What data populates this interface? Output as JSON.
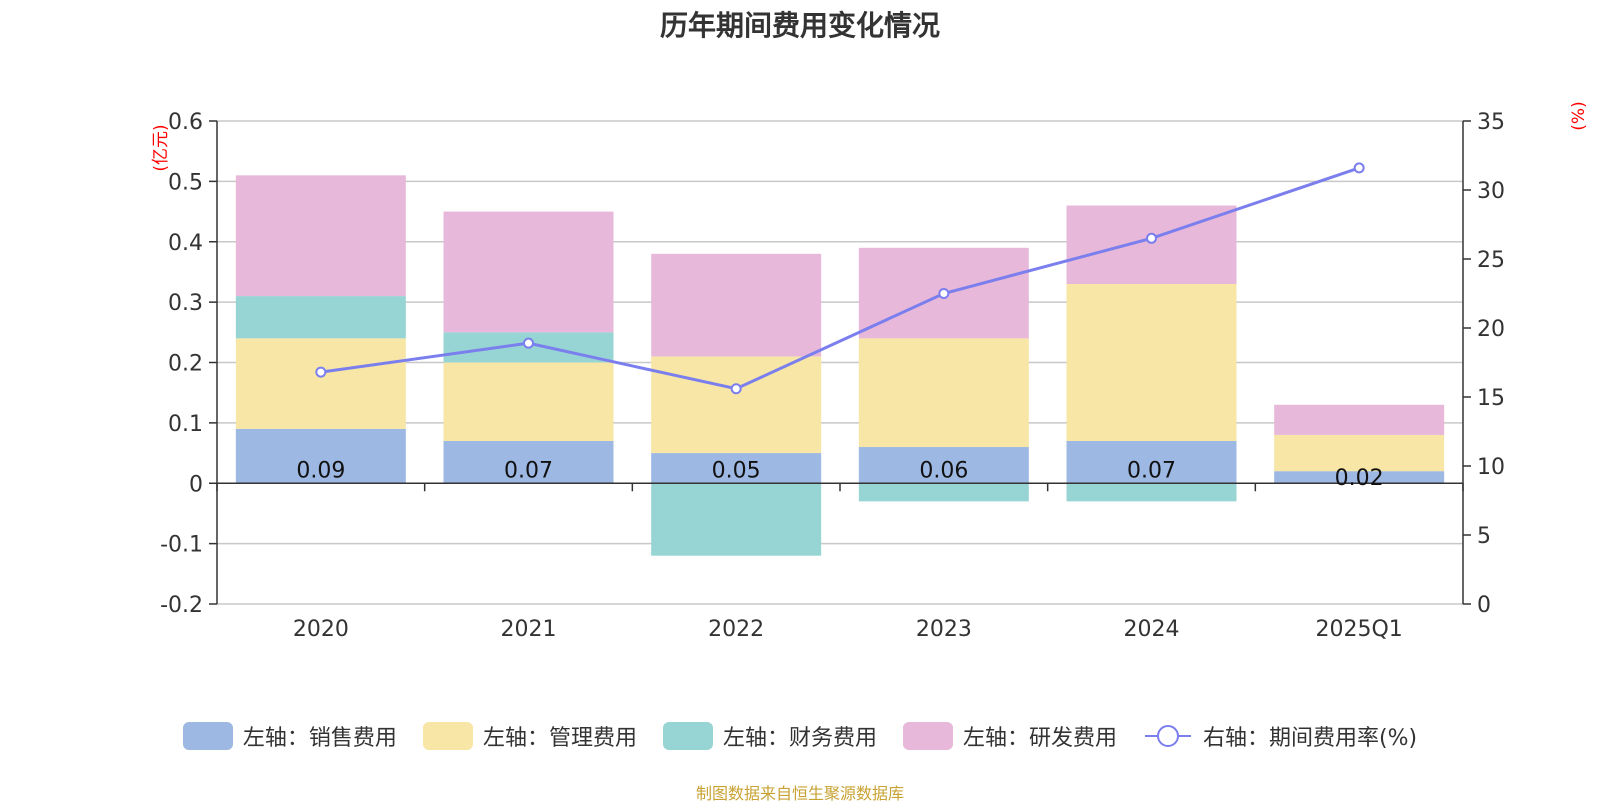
{
  "title": "历年期间费用变化情况",
  "source": "制图数据来自恒生聚源数据库",
  "colors": {
    "sales": "#9db8e2",
    "admin": "#f7e6a6",
    "finance": "#97d4d4",
    "rnd": "#e7b8d9",
    "rate": "#7b7fee",
    "axis_unit": "#ff0000",
    "grid": "#c8c8c8",
    "text": "#333333"
  },
  "chart_data": {
    "type": "bar",
    "stacked": true,
    "title": "历年期间费用变化情况",
    "categories": [
      "2020",
      "2021",
      "2022",
      "2023",
      "2024",
      "2025Q1"
    ],
    "left_axis": {
      "unit": "(亿元)",
      "range": [
        -0.2,
        0.6
      ],
      "ticks": [
        -0.2,
        -0.1,
        0,
        0.1,
        0.2,
        0.3,
        0.4,
        0.5,
        0.6
      ],
      "tick_labels": [
        "-0.2",
        "-0.1",
        "0",
        "0.1",
        "0.2",
        "0.3",
        "0.4",
        "0.5",
        "0.6"
      ]
    },
    "right_axis": {
      "unit": "(%)",
      "range": [
        0,
        35
      ],
      "ticks": [
        0,
        5,
        10,
        15,
        20,
        25,
        30,
        35
      ],
      "tick_labels": [
        "0",
        "5",
        "10",
        "15",
        "20",
        "25",
        "30",
        "35"
      ]
    },
    "series": [
      {
        "name": "左轴：销售费用",
        "key": "sales",
        "axis": "left",
        "type": "bar",
        "values": [
          0.09,
          0.07,
          0.05,
          0.06,
          0.07,
          0.02
        ],
        "labels": [
          "0.09",
          "0.07",
          "0.05",
          "0.06",
          "0.07",
          "0.02"
        ]
      },
      {
        "name": "左轴：管理费用",
        "key": "admin",
        "axis": "left",
        "type": "bar",
        "values": [
          0.15,
          0.13,
          0.16,
          0.18,
          0.26,
          0.06
        ]
      },
      {
        "name": "左轴：财务费用",
        "key": "finance",
        "axis": "left",
        "type": "bar",
        "values": [
          0.07,
          0.05,
          -0.12,
          -0.03,
          -0.03,
          0
        ]
      },
      {
        "name": "左轴：研发费用",
        "key": "rnd",
        "axis": "left",
        "type": "bar",
        "values": [
          0.2,
          0.2,
          0.17,
          0.15,
          0.13,
          0.05
        ]
      },
      {
        "name": "右轴：期间费用率(%)",
        "key": "rate",
        "axis": "right",
        "type": "line",
        "values": [
          16.8,
          18.9,
          15.6,
          22.5,
          26.5,
          31.6
        ]
      }
    ]
  }
}
